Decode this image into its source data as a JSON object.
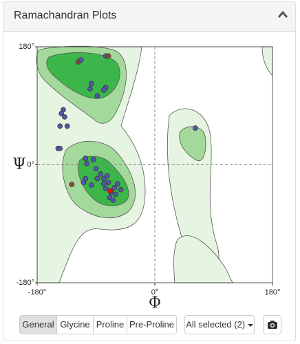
{
  "panel": {
    "title": "Ramachandran Plots"
  },
  "chart_data": {
    "type": "scatter",
    "x_label": "Φ",
    "y_label": "Ψ",
    "xlim": [
      -180,
      180
    ],
    "ylim": [
      -180,
      180
    ],
    "xticks": [
      {
        "value": -180,
        "label": "-180°"
      },
      {
        "value": 0,
        "label": "0°"
      },
      {
        "value": 180,
        "label": "180°"
      }
    ],
    "yticks": [
      {
        "value": -180,
        "label": "-180°"
      },
      {
        "value": 0,
        "label": "0°"
      },
      {
        "value": 180,
        "label": "180°"
      }
    ],
    "grid": true,
    "x": [
      -117,
      -113,
      -75,
      -71,
      -97,
      -99,
      -88,
      -75,
      -78,
      -140,
      -143,
      -138,
      -145,
      -134,
      -148,
      -145,
      -106,
      -94,
      -90,
      -104,
      -106,
      -109,
      -127,
      -97,
      -88,
      -83,
      -78,
      -73,
      -71,
      -75,
      -67,
      -62,
      -57,
      -60,
      -52,
      -69,
      -64,
      -78,
      62,
      -68
    ],
    "values": [
      157,
      160,
      166,
      166,
      124,
      116,
      105,
      118,
      114,
      84,
      78,
      73,
      59,
      59,
      25,
      25,
      10,
      8,
      -6,
      2,
      -21,
      -27,
      -30,
      -31,
      -21,
      -14,
      -21,
      -17,
      -27,
      -36,
      -42,
      -35,
      -29,
      -45,
      -38,
      -50,
      -54,
      -29,
      56,
      -40
    ],
    "point_colors": [
      "#8b4a3a",
      "#5656a8",
      "#5656a8",
      "#8b4a3a",
      "#5656a8",
      "#5656a8",
      "#5656a8",
      "#5656a8",
      "#5656a8",
      "#5656a8",
      "#5656a8",
      "#5656a8",
      "#5656a8",
      "#5656a8",
      "#5656a8",
      "#5656a8",
      "#5656a8",
      "#5656a8",
      "#5656a8",
      "#5656a8",
      "#5656a8",
      "#5656a8",
      "#8b4a3a",
      "#5656a8",
      "#5656a8",
      "#5656a8",
      "#5656a8",
      "#5656a8",
      "#5656a8",
      "#5656a8",
      "#5656a8",
      "#5656a8",
      "#5656a8",
      "#5656a8",
      "#5656a8",
      "#5656a8",
      "#5656a8",
      "#5656a8",
      "#5656a8",
      "#ff0000"
    ]
  },
  "buttons": {
    "types": [
      "General",
      "Glycine",
      "Proline",
      "Pre-Proline"
    ],
    "selection": "All selected (2)"
  }
}
